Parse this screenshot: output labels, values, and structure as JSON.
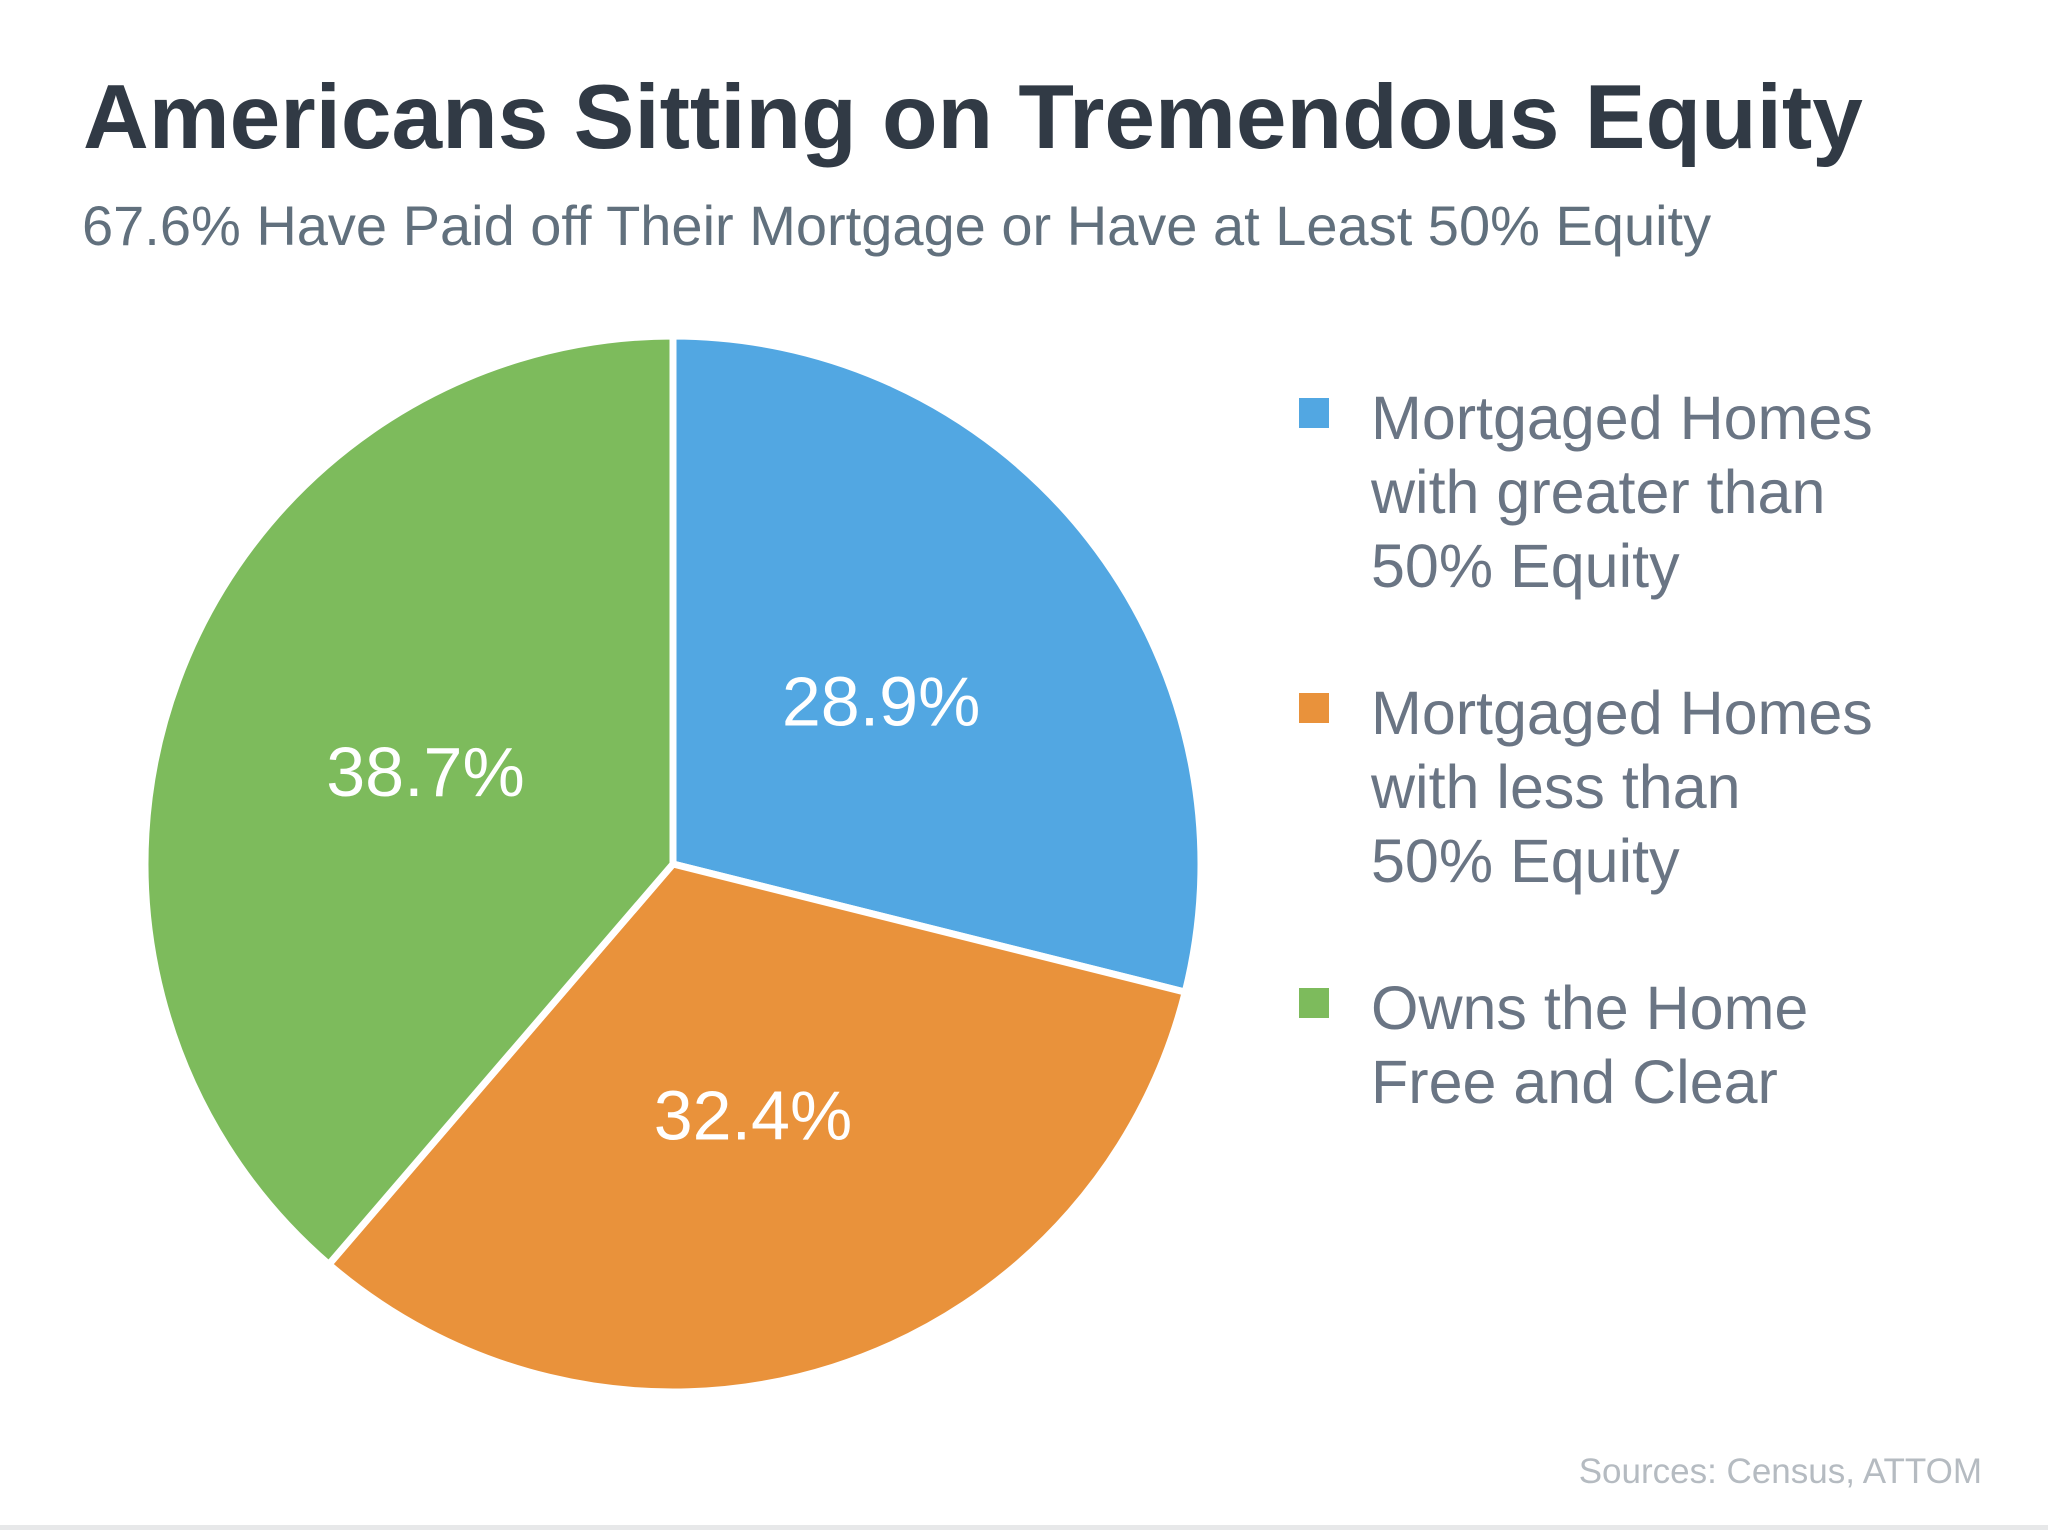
{
  "page": {
    "title": "Americans Sitting on Tremendous Equity",
    "subtitle": "67.6% Have Paid off Their Mortgage or Have at Least 50% Equity",
    "source_note": "Sources: Census, ATTOM"
  },
  "colors": {
    "title_text": "#313a45",
    "subtitle_text": "#61707d",
    "legend_text": "#6a7584",
    "source_text": "#b5bbc1",
    "slice_blue": "#52a7e2",
    "slice_orange": "#e9923b",
    "slice_green": "#7dbb5c",
    "separator": "#ffffff",
    "bottom_strip": "#e7e8e9"
  },
  "chart_data": {
    "type": "pie",
    "title": "Americans Sitting on Tremendous Equity",
    "subtitle": "67.6% Have Paid off Their Mortgage or Have at Least 50% Equity",
    "start_angle_deg": -90,
    "direction": "clockwise",
    "label_radius_fraction": 0.5,
    "legend_position": "right",
    "slices": [
      {
        "id": "mortgaged-gt-50-equity",
        "label": "Mortgaged Homes with greater than 50% Equity",
        "value": 28.9,
        "display": "28.9%",
        "color": "#52a7e2"
      },
      {
        "id": "mortgaged-lt-50-equity",
        "label": "Mortgaged Homes with less than 50% Equity",
        "value": 32.4,
        "display": "32.4%",
        "color": "#e9923b"
      },
      {
        "id": "owns-free-and-clear",
        "label": "Owns the Home Free and Clear",
        "value": 38.7,
        "display": "38.7%",
        "color": "#7dbb5c"
      }
    ],
    "legend": [
      {
        "slice_id": "mortgaged-gt-50-equity",
        "lines": [
          "Mortgaged Homes",
          "with greater than",
          "50% Equity"
        ],
        "color": "#52a7e2"
      },
      {
        "slice_id": "mortgaged-lt-50-equity",
        "lines": [
          "Mortgaged Homes",
          "with less than",
          "50% Equity"
        ],
        "color": "#e9923b"
      },
      {
        "slice_id": "owns-free-and-clear",
        "lines": [
          "Owns the Home",
          "Free and Clear"
        ],
        "color": "#7dbb5c"
      }
    ]
  }
}
